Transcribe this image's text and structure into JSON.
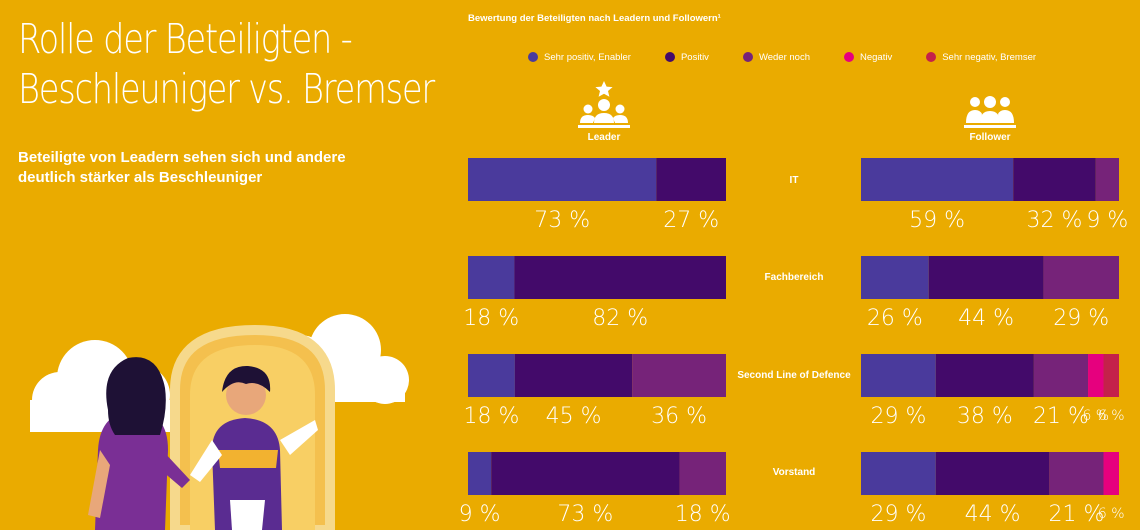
{
  "page": {
    "title_line1": "Rolle der Beteiligten -",
    "title_line2": "Beschleuniger vs. Bremser",
    "subtitle": "Beteiligte von Leadern sehen sich und andere deutlich stärker als Beschleuniger"
  },
  "chart_data": {
    "type": "bar",
    "orientation": "horizontal",
    "stacked": true,
    "title": "Bewertung der Beteiligten nach Leadern und Followern¹",
    "value_suffix": " %",
    "groups": [
      "Leader",
      "Follower"
    ],
    "categories": [
      "IT",
      "Fachbereich",
      "Second Line of Defence",
      "Vorstand"
    ],
    "series": [
      {
        "name": "Sehr positiv, Enabler",
        "color": "#4A3A9C"
      },
      {
        "name": "Positiv",
        "color": "#430A6A"
      },
      {
        "name": "Weder noch",
        "color": "#762379"
      },
      {
        "name": "Negativ",
        "color": "#E6007E"
      },
      {
        "name": "Sehr negativ, Bremser",
        "color": "#C4214A"
      }
    ],
    "values": {
      "Leader": [
        [
          73,
          27,
          0,
          0,
          0
        ],
        [
          18,
          82,
          0,
          0,
          0
        ],
        [
          18,
          45,
          36,
          0,
          0
        ],
        [
          9,
          73,
          18,
          0,
          0
        ]
      ],
      "Follower": [
        [
          59,
          32,
          9,
          0,
          0
        ],
        [
          26,
          44,
          29,
          0,
          0
        ],
        [
          29,
          38,
          21,
          6,
          6
        ],
        [
          29,
          44,
          21,
          6,
          0
        ]
      ]
    },
    "legend_position": "top",
    "grid": false
  }
}
